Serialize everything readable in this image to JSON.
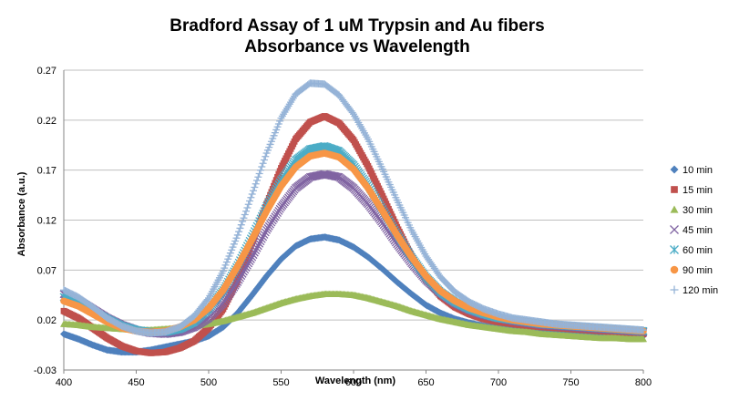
{
  "chart_data": {
    "type": "scatter",
    "title": "Bradford Assay of 1 uM Trypsin and Au fibers",
    "subtitle": "Absorbance vs Wavelength",
    "xlabel": "Wavelength (nm)",
    "ylabel": "Absorbance (a.u.)",
    "xlim": [
      400,
      800
    ],
    "ylim": [
      -0.03,
      0.27
    ],
    "x_ticks": [
      "400",
      "450",
      "500",
      "550",
      "600",
      "650",
      "700",
      "750",
      "800"
    ],
    "y_ticks": [
      "-0.03",
      "0.02",
      "0.07",
      "0.12",
      "0.17",
      "0.22",
      "0.27"
    ],
    "grid": "horizontal",
    "legend_position": "right",
    "x": [
      400,
      410,
      420,
      430,
      440,
      450,
      460,
      470,
      480,
      490,
      500,
      510,
      520,
      530,
      540,
      550,
      560,
      570,
      580,
      590,
      600,
      610,
      620,
      630,
      640,
      650,
      660,
      670,
      680,
      690,
      700,
      710,
      720,
      730,
      740,
      750,
      760,
      770,
      780,
      790,
      800
    ],
    "series": [
      {
        "name": "10 min",
        "color": "#4F81BD",
        "marker": "diamond",
        "values": [
          0.006,
          0.001,
          -0.005,
          -0.01,
          -0.012,
          -0.012,
          -0.01,
          -0.007,
          -0.004,
          -0.001,
          0.004,
          0.013,
          0.027,
          0.045,
          0.064,
          0.081,
          0.094,
          0.101,
          0.103,
          0.1,
          0.093,
          0.083,
          0.071,
          0.058,
          0.046,
          0.035,
          0.027,
          0.021,
          0.017,
          0.014,
          0.012,
          0.011,
          0.01,
          0.009,
          0.008,
          0.007,
          0.006,
          0.005,
          0.004,
          0.004,
          0.004
        ]
      },
      {
        "name": "15 min",
        "color": "#C0504D",
        "marker": "square",
        "values": [
          0.029,
          0.022,
          0.012,
          0.002,
          -0.006,
          -0.011,
          -0.013,
          -0.012,
          -0.008,
          -0.001,
          0.012,
          0.031,
          0.06,
          0.097,
          0.136,
          0.172,
          0.201,
          0.218,
          0.224,
          0.217,
          0.2,
          0.174,
          0.144,
          0.113,
          0.084,
          0.061,
          0.044,
          0.033,
          0.026,
          0.021,
          0.018,
          0.016,
          0.014,
          0.013,
          0.012,
          0.011,
          0.01,
          0.009,
          0.008,
          0.007,
          0.006
        ]
      },
      {
        "name": "30 min",
        "color": "#9BBB59",
        "marker": "triangle",
        "values": [
          0.016,
          0.015,
          0.013,
          0.012,
          0.011,
          0.01,
          0.01,
          0.011,
          0.012,
          0.014,
          0.016,
          0.019,
          0.023,
          0.027,
          0.032,
          0.037,
          0.041,
          0.044,
          0.046,
          0.046,
          0.045,
          0.042,
          0.038,
          0.034,
          0.029,
          0.025,
          0.021,
          0.018,
          0.015,
          0.013,
          0.011,
          0.009,
          0.008,
          0.006,
          0.005,
          0.004,
          0.003,
          0.002,
          0.002,
          0.001,
          0.001
        ]
      },
      {
        "name": "45 min",
        "color": "#8064A2",
        "marker": "x",
        "values": [
          0.046,
          0.04,
          0.031,
          0.022,
          0.015,
          0.01,
          0.007,
          0.006,
          0.008,
          0.013,
          0.022,
          0.037,
          0.058,
          0.083,
          0.11,
          0.133,
          0.152,
          0.163,
          0.166,
          0.163,
          0.152,
          0.136,
          0.117,
          0.096,
          0.077,
          0.06,
          0.047,
          0.037,
          0.03,
          0.025,
          0.022,
          0.019,
          0.017,
          0.015,
          0.014,
          0.013,
          0.012,
          0.011,
          0.01,
          0.009,
          0.008
        ]
      },
      {
        "name": "60 min",
        "color": "#4BACC6",
        "marker": "star",
        "values": [
          0.043,
          0.037,
          0.029,
          0.021,
          0.014,
          0.01,
          0.008,
          0.008,
          0.011,
          0.018,
          0.031,
          0.05,
          0.075,
          0.104,
          0.134,
          0.16,
          0.18,
          0.191,
          0.194,
          0.189,
          0.175,
          0.155,
          0.131,
          0.106,
          0.083,
          0.063,
          0.048,
          0.038,
          0.031,
          0.026,
          0.022,
          0.02,
          0.018,
          0.016,
          0.015,
          0.014,
          0.013,
          0.012,
          0.011,
          0.01,
          0.009
        ]
      },
      {
        "name": "90 min",
        "color": "#F79646",
        "marker": "circle",
        "values": [
          0.039,
          0.034,
          0.026,
          0.018,
          0.012,
          0.009,
          0.008,
          0.009,
          0.013,
          0.02,
          0.032,
          0.05,
          0.074,
          0.101,
          0.129,
          0.154,
          0.173,
          0.184,
          0.187,
          0.183,
          0.171,
          0.152,
          0.129,
          0.105,
          0.083,
          0.064,
          0.049,
          0.039,
          0.032,
          0.027,
          0.023,
          0.02,
          0.018,
          0.016,
          0.015,
          0.014,
          0.013,
          0.012,
          0.011,
          0.01,
          0.009
        ]
      },
      {
        "name": "120 min",
        "color": "#95B3D7",
        "marker": "plus",
        "values": [
          0.05,
          0.043,
          0.033,
          0.022,
          0.014,
          0.009,
          0.007,
          0.008,
          0.013,
          0.024,
          0.042,
          0.069,
          0.105,
          0.146,
          0.187,
          0.222,
          0.246,
          0.257,
          0.256,
          0.245,
          0.226,
          0.201,
          0.171,
          0.14,
          0.11,
          0.084,
          0.063,
          0.048,
          0.038,
          0.031,
          0.026,
          0.022,
          0.02,
          0.018,
          0.016,
          0.015,
          0.014,
          0.013,
          0.012,
          0.011,
          0.01
        ]
      }
    ]
  }
}
